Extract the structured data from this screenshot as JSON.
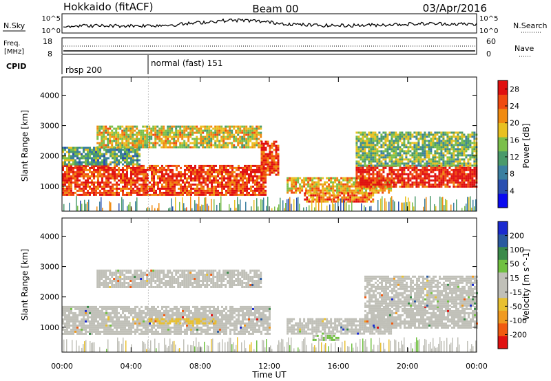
{
  "header": {
    "radar": "Hokkaido (fitACF)",
    "beam": "Beam 00",
    "date": "03/Apr/2016"
  },
  "top_panel": {
    "left_label": "N.Sky",
    "right_label": "N.Search",
    "left_ticks": [
      "10^5",
      "10^0"
    ],
    "right_ticks": [
      "10^5",
      "10^0"
    ]
  },
  "freq_panel": {
    "label": "Freq.",
    "unit": "[MHz]",
    "left_ticks": [
      "18",
      "8"
    ],
    "right_label": "Nave",
    "right_ticks": [
      "60",
      "0"
    ]
  },
  "cpid": {
    "label": "CPID",
    "segments": [
      {
        "name": "rbsp 200",
        "start_hour": 0,
        "end_hour": 5
      },
      {
        "name": "normal (fast) 151",
        "start_hour": 5,
        "end_hour": 24
      }
    ]
  },
  "colors": {
    "power_scale": [
      "#0a0af0",
      "#2a4fb0",
      "#3a7fa0",
      "#4a9a6a",
      "#7bbf4a",
      "#e8c020",
      "#f08a10",
      "#f04a10",
      "#e01010"
    ],
    "velocity_scale": [
      "#e01010",
      "#f05a10",
      "#f09a20",
      "#e8c030",
      "#c0c0b8",
      "#c0c0b8",
      "#70c040",
      "#3a8a4a",
      "#2a5aa0",
      "#1a2ad0"
    ]
  },
  "chart_data": [
    {
      "type": "heatmap",
      "title": "",
      "xlabel": "",
      "ylabel": "Slant Range [km]",
      "x_ticks": [
        "00:00",
        "04:00",
        "08:00",
        "12:00",
        "16:00",
        "20:00",
        "00:00"
      ],
      "y_ticks": [
        "1000",
        "2000",
        "3000",
        "4000"
      ],
      "xlim": [
        0,
        24
      ],
      "ylim": [
        180,
        4600
      ],
      "colorbar": {
        "label": "Power [dB]",
        "ticks": [
          "4",
          "8",
          "12",
          "16",
          "20",
          "24",
          "28"
        ],
        "range": [
          0,
          30
        ]
      },
      "bands": [
        {
          "t0": 0.0,
          "t1": 11.8,
          "r0": 700,
          "r1": 1700,
          "level": 26
        },
        {
          "t0": 0.0,
          "t1": 4.5,
          "r0": 1700,
          "r1": 2300,
          "level": 12
        },
        {
          "t0": 2.0,
          "t1": 11.5,
          "r0": 2300,
          "r1": 3000,
          "level": 18
        },
        {
          "t0": 11.5,
          "t1": 12.5,
          "r0": 1400,
          "r1": 2500,
          "level": 26
        },
        {
          "t0": 13.0,
          "t1": 19.0,
          "r0": 800,
          "r1": 1300,
          "level": 20
        },
        {
          "t0": 14.0,
          "t1": 18.0,
          "r0": 500,
          "r1": 800,
          "level": 24
        },
        {
          "t0": 17.0,
          "t1": 24.0,
          "r0": 1000,
          "r1": 1700,
          "level": 28
        },
        {
          "t0": 17.0,
          "t1": 24.0,
          "r0": 1700,
          "r1": 2800,
          "level": 14
        }
      ]
    },
    {
      "type": "heatmap",
      "title": "",
      "xlabel": "Time UT",
      "ylabel": "Slant Range [km]",
      "x_ticks": [
        "00:00",
        "04:00",
        "08:00",
        "12:00",
        "16:00",
        "20:00",
        "00:00"
      ],
      "y_ticks": [
        "1000",
        "2000",
        "3000",
        "4000"
      ],
      "xlim": [
        0,
        24
      ],
      "ylim": [
        180,
        4600
      ],
      "colorbar": {
        "label": "Velocity [m s^-1]",
        "ticks": [
          "200",
          "100",
          "50",
          "15",
          "-15",
          "-50",
          "-100",
          "-200"
        ],
        "range": [
          -250,
          250
        ]
      },
      "bands": [
        {
          "t0": 0.0,
          "t1": 12.0,
          "r0": 800,
          "r1": 1700,
          "level": 0
        },
        {
          "t0": 2.0,
          "t1": 11.5,
          "r0": 2300,
          "r1": 2900,
          "level": 0
        },
        {
          "t0": 5.0,
          "t1": 9.0,
          "r0": 1100,
          "r1": 1300,
          "level": -60
        },
        {
          "t0": 13.0,
          "t1": 19.0,
          "r0": 800,
          "r1": 1300,
          "level": 0
        },
        {
          "t0": 14.5,
          "t1": 16.0,
          "r0": 550,
          "r1": 750,
          "level": 60
        },
        {
          "t0": 17.5,
          "t1": 24.0,
          "r0": 1000,
          "r1": 1700,
          "level": 0
        },
        {
          "t0": 17.5,
          "t1": 24.0,
          "r0": 1700,
          "r1": 2700,
          "level": 0
        }
      ]
    }
  ]
}
